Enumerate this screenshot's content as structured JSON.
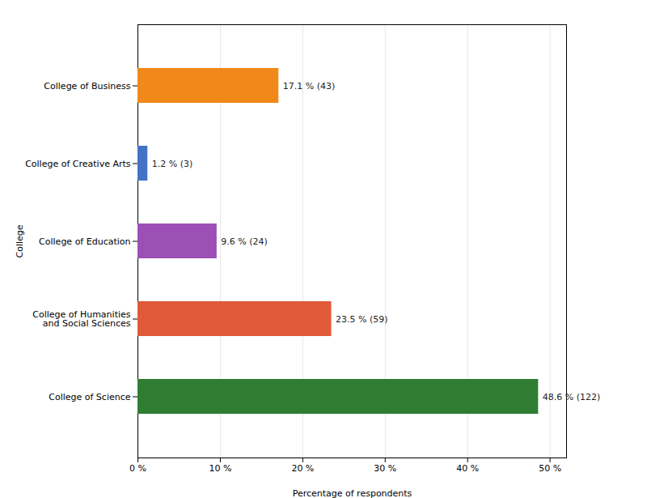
{
  "chart_data": {
    "type": "bar",
    "orientation": "horizontal",
    "categories": [
      "College of Science",
      "College of Humanities\nand Social Sciences",
      "College of Education",
      "College of Creative Arts",
      "College of Business"
    ],
    "values": [
      48.6,
      23.5,
      9.6,
      1.2,
      17.1
    ],
    "value_labels": [
      "48.6 % (122)",
      "23.5 % (59)",
      "9.6 % (24)",
      "1.2 % (3)",
      "17.1 % (43)"
    ],
    "data_labels": true,
    "colors": [
      "#2e7d32",
      "#e05a3a",
      "#9c4fb5",
      "#4472c4",
      "#f0891a"
    ],
    "xlabel": "Percentage of respondents",
    "ylabel": "College",
    "xlim": [
      0,
      52
    ],
    "xticks": [
      {
        "value": 0,
        "label": "0 %"
      },
      {
        "value": 10,
        "label": "10 %"
      },
      {
        "value": 20,
        "label": "20 %"
      },
      {
        "value": 30,
        "label": "30 %"
      },
      {
        "value": 40,
        "label": "40 %"
      },
      {
        "value": 50,
        "label": "50 %"
      }
    ],
    "grid": true
  }
}
